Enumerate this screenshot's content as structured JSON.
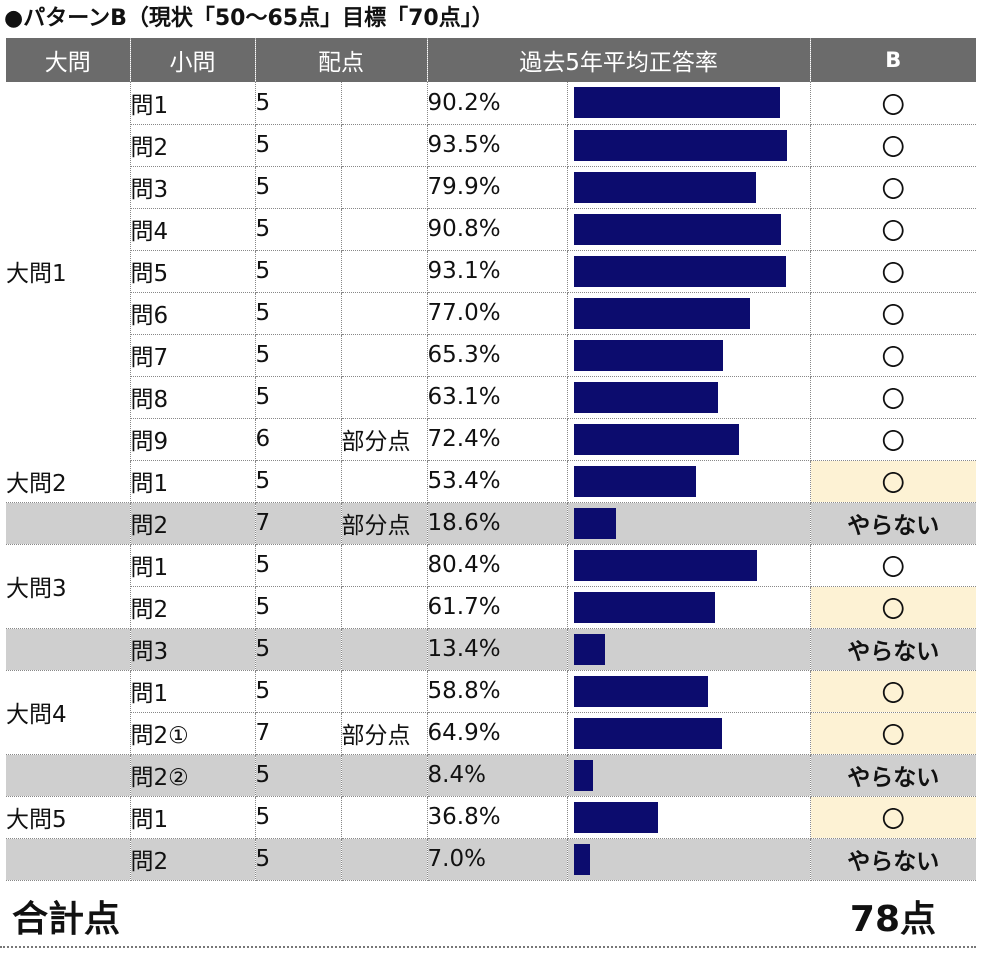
{
  "title": "●パターンB（現状「50〜65点」目標「70点」）",
  "headers": {
    "big": "大問",
    "sub": "小問",
    "points": "配点",
    "rate": "過去5年平均正答率",
    "b": "B"
  },
  "colors": {
    "header_bg": "#6b6b6b",
    "bar": "#0c0c6e",
    "skipped_row": "#cfcfcf",
    "highlight_cell": "#fdf2d4"
  },
  "rows": [
    {
      "big": "大問1",
      "sub": "問1",
      "points": "5",
      "note": "",
      "rate": "90.2%",
      "rate_value": 90.2,
      "b": "〇",
      "status": "plain"
    },
    {
      "big": "",
      "sub": "問2",
      "points": "5",
      "note": "",
      "rate": "93.5%",
      "rate_value": 93.5,
      "b": "〇",
      "status": "plain"
    },
    {
      "big": "",
      "sub": "問3",
      "points": "5",
      "note": "",
      "rate": "79.9%",
      "rate_value": 79.9,
      "b": "〇",
      "status": "plain"
    },
    {
      "big": "",
      "sub": "問4",
      "points": "5",
      "note": "",
      "rate": "90.8%",
      "rate_value": 90.8,
      "b": "〇",
      "status": "plain"
    },
    {
      "big": "",
      "sub": "問5",
      "points": "5",
      "note": "",
      "rate": "93.1%",
      "rate_value": 93.1,
      "b": "〇",
      "status": "plain"
    },
    {
      "big": "",
      "sub": "問6",
      "points": "5",
      "note": "",
      "rate": "77.0%",
      "rate_value": 77.0,
      "b": "〇",
      "status": "plain"
    },
    {
      "big": "",
      "sub": "問7",
      "points": "5",
      "note": "",
      "rate": "65.3%",
      "rate_value": 65.3,
      "b": "〇",
      "status": "plain"
    },
    {
      "big": "",
      "sub": "問8",
      "points": "5",
      "note": "",
      "rate": "63.1%",
      "rate_value": 63.1,
      "b": "〇",
      "status": "plain"
    },
    {
      "big": "",
      "sub": "問9",
      "points": "6",
      "note": "部分点",
      "rate": "72.4%",
      "rate_value": 72.4,
      "b": "〇",
      "status": "plain"
    },
    {
      "big": "大問2",
      "sub": "問1",
      "points": "5",
      "note": "",
      "rate": "53.4%",
      "rate_value": 53.4,
      "b": "〇",
      "status": "highlight"
    },
    {
      "big": "",
      "sub": "問2",
      "points": "7",
      "note": "部分点",
      "rate": "18.6%",
      "rate_value": 18.6,
      "b": "やらない",
      "status": "skip"
    },
    {
      "big": "大問3",
      "sub": "問1",
      "points": "5",
      "note": "",
      "rate": "80.4%",
      "rate_value": 80.4,
      "b": "〇",
      "status": "plain"
    },
    {
      "big": "",
      "sub": "問2",
      "points": "5",
      "note": "",
      "rate": "61.7%",
      "rate_value": 61.7,
      "b": "〇",
      "status": "highlight"
    },
    {
      "big": "",
      "sub": "問3",
      "points": "5",
      "note": "",
      "rate": "13.4%",
      "rate_value": 13.4,
      "b": "やらない",
      "status": "skip"
    },
    {
      "big": "大問4",
      "sub": "問1",
      "points": "5",
      "note": "",
      "rate": "58.8%",
      "rate_value": 58.8,
      "b": "〇",
      "status": "highlight"
    },
    {
      "big": "",
      "sub": "問2①",
      "points": "7",
      "note": "部分点",
      "rate": "64.9%",
      "rate_value": 64.9,
      "b": "〇",
      "status": "highlight"
    },
    {
      "big": "",
      "sub": "問2②",
      "points": "5",
      "note": "",
      "rate": "8.4%",
      "rate_value": 8.4,
      "b": "やらない",
      "status": "skip"
    },
    {
      "big": "大問5",
      "sub": "問1",
      "points": "5",
      "note": "",
      "rate": "36.8%",
      "rate_value": 36.8,
      "b": "〇",
      "status": "highlight"
    },
    {
      "big": "",
      "sub": "問2",
      "points": "5",
      "note": "",
      "rate": "7.0%",
      "rate_value": 7.0,
      "b": "やらない",
      "status": "skip"
    }
  ],
  "total": {
    "label": "合計点",
    "value": "78点"
  }
}
